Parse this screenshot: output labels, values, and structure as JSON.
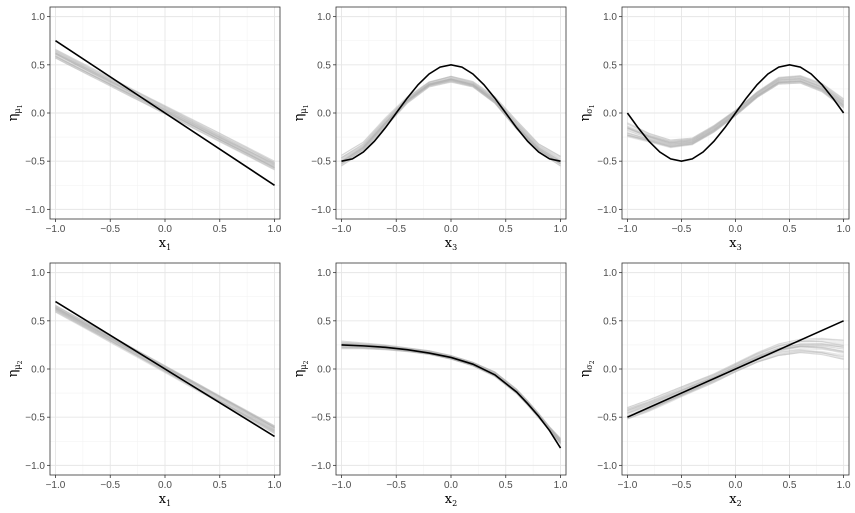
{
  "chart_data": [
    {
      "type": "line",
      "xlabel": {
        "base": "x",
        "sub": "1"
      },
      "ylabel": {
        "base": "η",
        "sub": "μ",
        "subsub": "1"
      },
      "xlim": [
        -1.05,
        1.05
      ],
      "ylim": [
        -1.1,
        1.1
      ],
      "xticks": [
        -1.0,
        -0.5,
        0.0,
        0.5,
        1.0
      ],
      "xtick_labels": [
        "−1.0",
        "−0.5",
        "0.0",
        "0.5",
        "1.0"
      ],
      "yticks": [
        -1.0,
        -0.5,
        0.0,
        0.5,
        1.0
      ],
      "ytick_labels": [
        "−1.0",
        "−0.5",
        "0.0",
        "0.5",
        "1.0"
      ],
      "grid": true,
      "series": [
        {
          "role": "true",
          "color": "#000000",
          "x": [
            -1.0,
            1.0
          ],
          "y": [
            0.75,
            -0.75
          ]
        },
        {
          "role": "estimates",
          "color": "#b3b3b3",
          "x": [
            -1.0,
            1.0
          ],
          "y_min": [
            0.57,
            -0.59
          ],
          "y_max": [
            0.66,
            -0.5
          ]
        }
      ]
    },
    {
      "type": "line",
      "xlabel": {
        "base": "x",
        "sub": "3"
      },
      "ylabel": {
        "base": "η",
        "sub": "μ",
        "subsub": "1"
      },
      "xlim": [
        -1.05,
        1.05
      ],
      "ylim": [
        -1.1,
        1.1
      ],
      "xticks": [
        -1.0,
        -0.5,
        0.0,
        0.5,
        1.0
      ],
      "xtick_labels": [
        "−1.0",
        "−0.5",
        "0.0",
        "0.5",
        "1.0"
      ],
      "yticks": [
        -1.0,
        -0.5,
        0.0,
        0.5,
        1.0
      ],
      "ytick_labels": [
        "−1.0",
        "−0.5",
        "0.0",
        "0.5",
        "1.0"
      ],
      "grid": true,
      "series": [
        {
          "role": "true",
          "color": "#000000",
          "x": [
            -1.0,
            -0.9,
            -0.8,
            -0.7,
            -0.6,
            -0.5,
            -0.4,
            -0.3,
            -0.2,
            -0.1,
            0.0,
            0.1,
            0.2,
            0.3,
            0.4,
            0.5,
            0.6,
            0.7,
            0.8,
            0.9,
            1.0
          ],
          "y": [
            -0.5,
            -0.476,
            -0.405,
            -0.294,
            -0.155,
            0.0,
            0.155,
            0.294,
            0.405,
            0.476,
            0.5,
            0.476,
            0.405,
            0.294,
            0.155,
            0.0,
            -0.155,
            -0.294,
            -0.405,
            -0.476,
            -0.5
          ]
        },
        {
          "role": "estimates",
          "color": "#b3b3b3",
          "x": [
            -1.0,
            -0.8,
            -0.6,
            -0.4,
            -0.2,
            0.0,
            0.2,
            0.4,
            0.6,
            0.8,
            1.0
          ],
          "y_min": [
            -0.55,
            -0.4,
            -0.15,
            0.1,
            0.27,
            0.32,
            0.27,
            0.1,
            -0.17,
            -0.4,
            -0.55
          ],
          "y_max": [
            -0.44,
            -0.3,
            -0.05,
            0.17,
            0.33,
            0.39,
            0.33,
            0.17,
            -0.08,
            -0.32,
            -0.45
          ]
        }
      ]
    },
    {
      "type": "line",
      "xlabel": {
        "base": "x",
        "sub": "3"
      },
      "ylabel": {
        "base": "η",
        "sub": "σ",
        "subsub": "1"
      },
      "xlim": [
        -1.05,
        1.05
      ],
      "ylim": [
        -1.1,
        1.1
      ],
      "xticks": [
        -1.0,
        -0.5,
        0.0,
        0.5,
        1.0
      ],
      "xtick_labels": [
        "−1.0",
        "−0.5",
        "0.0",
        "0.5",
        "1.0"
      ],
      "yticks": [
        -1.0,
        -0.5,
        0.0,
        0.5,
        1.0
      ],
      "ytick_labels": [
        "−1.0",
        "−0.5",
        "0.0",
        "0.5",
        "1.0"
      ],
      "grid": true,
      "series": [
        {
          "role": "true",
          "color": "#000000",
          "x": [
            -1.0,
            -0.9,
            -0.8,
            -0.7,
            -0.6,
            -0.5,
            -0.4,
            -0.3,
            -0.2,
            -0.1,
            0.0,
            0.1,
            0.2,
            0.3,
            0.4,
            0.5,
            0.6,
            0.7,
            0.8,
            0.9,
            1.0
          ],
          "y": [
            0.0,
            -0.155,
            -0.294,
            -0.405,
            -0.476,
            -0.5,
            -0.476,
            -0.405,
            -0.294,
            -0.155,
            0.0,
            0.155,
            0.294,
            0.405,
            0.476,
            0.5,
            0.476,
            0.405,
            0.294,
            0.155,
            0.0
          ]
        },
        {
          "role": "estimates",
          "color": "#b3b3b3",
          "x": [
            -1.0,
            -0.8,
            -0.6,
            -0.4,
            -0.2,
            0.0,
            0.2,
            0.4,
            0.6,
            0.8,
            1.0
          ],
          "y_min": [
            -0.25,
            -0.3,
            -0.36,
            -0.33,
            -0.2,
            -0.03,
            0.16,
            0.3,
            0.31,
            0.22,
            0.05
          ],
          "y_max": [
            -0.1,
            -0.21,
            -0.28,
            -0.26,
            -0.13,
            0.03,
            0.22,
            0.37,
            0.39,
            0.31,
            0.15
          ]
        }
      ]
    },
    {
      "type": "line",
      "xlabel": {
        "base": "x",
        "sub": "1"
      },
      "ylabel": {
        "base": "η",
        "sub": "μ",
        "subsub": "2"
      },
      "xlim": [
        -1.05,
        1.05
      ],
      "ylim": [
        -1.1,
        1.1
      ],
      "xticks": [
        -1.0,
        -0.5,
        0.0,
        0.5,
        1.0
      ],
      "xtick_labels": [
        "−1.0",
        "−0.5",
        "0.0",
        "0.5",
        "1.0"
      ],
      "yticks": [
        -1.0,
        -0.5,
        0.0,
        0.5,
        1.0
      ],
      "ytick_labels": [
        "−1.0",
        "−0.5",
        "0.0",
        "0.5",
        "1.0"
      ],
      "grid": true,
      "series": [
        {
          "role": "true",
          "color": "#000000",
          "x": [
            -1.0,
            1.0
          ],
          "y": [
            0.7,
            -0.7
          ]
        },
        {
          "role": "estimates",
          "color": "#b3b3b3",
          "x": [
            -1.0,
            1.0
          ],
          "y_min": [
            0.59,
            -0.67
          ],
          "y_max": [
            0.66,
            -0.59
          ]
        }
      ]
    },
    {
      "type": "line",
      "xlabel": {
        "base": "x",
        "sub": "2"
      },
      "ylabel": {
        "base": "η",
        "sub": "μ",
        "subsub": "2"
      },
      "xlim": [
        -1.05,
        1.05
      ],
      "ylim": [
        -1.1,
        1.1
      ],
      "xticks": [
        -1.0,
        -0.5,
        0.0,
        0.5,
        1.0
      ],
      "xtick_labels": [
        "−1.0",
        "−0.5",
        "0.0",
        "0.5",
        "1.0"
      ],
      "yticks": [
        -1.0,
        -0.5,
        0.0,
        0.5,
        1.0
      ],
      "ytick_labels": [
        "−1.0",
        "−0.5",
        "0.0",
        "0.5",
        "1.0"
      ],
      "grid": true,
      "series": [
        {
          "role": "true",
          "color": "#000000",
          "x": [
            -1.0,
            -0.8,
            -0.6,
            -0.4,
            -0.2,
            0.0,
            0.2,
            0.4,
            0.6,
            0.7,
            0.8,
            0.9,
            1.0
          ],
          "y": [
            0.25,
            0.24,
            0.225,
            0.2,
            0.165,
            0.12,
            0.05,
            -0.06,
            -0.24,
            -0.36,
            -0.49,
            -0.64,
            -0.82
          ]
        },
        {
          "role": "estimates",
          "color": "#b3b3b3",
          "x": [
            -1.0,
            -0.8,
            -0.6,
            -0.4,
            -0.2,
            0.0,
            0.2,
            0.4,
            0.6,
            0.7,
            0.8,
            0.9,
            1.0
          ],
          "y_min": [
            0.21,
            0.21,
            0.2,
            0.18,
            0.15,
            0.1,
            0.03,
            -0.08,
            -0.26,
            -0.38,
            -0.51,
            -0.64,
            -0.78
          ],
          "y_max": [
            0.29,
            0.27,
            0.25,
            0.22,
            0.19,
            0.14,
            0.07,
            -0.03,
            -0.21,
            -0.33,
            -0.46,
            -0.6,
            -0.72
          ]
        }
      ]
    },
    {
      "type": "line",
      "xlabel": {
        "base": "x",
        "sub": "2"
      },
      "ylabel": {
        "base": "η",
        "sub": "σ",
        "subsub": "2"
      },
      "xlim": [
        -1.05,
        1.05
      ],
      "ylim": [
        -1.1,
        1.1
      ],
      "xticks": [
        -1.0,
        -0.5,
        0.0,
        0.5,
        1.0
      ],
      "xtick_labels": [
        "−1.0",
        "−0.5",
        "0.0",
        "0.5",
        "1.0"
      ],
      "yticks": [
        -1.0,
        -0.5,
        0.0,
        0.5,
        1.0
      ],
      "ytick_labels": [
        "−1.0",
        "−0.5",
        "0.0",
        "0.5",
        "1.0"
      ],
      "grid": true,
      "series": [
        {
          "role": "true",
          "color": "#000000",
          "x": [
            -1.0,
            1.0
          ],
          "y": [
            -0.5,
            0.5
          ]
        },
        {
          "role": "estimates",
          "color": "#b3b3b3",
          "x": [
            -1.0,
            -0.8,
            -0.6,
            -0.4,
            -0.2,
            0.0,
            0.2,
            0.4,
            0.6,
            0.8,
            1.0
          ],
          "y_min": [
            -0.52,
            -0.44,
            -0.34,
            -0.24,
            -0.14,
            -0.03,
            0.07,
            0.14,
            0.17,
            0.15,
            0.1
          ],
          "y_max": [
            -0.4,
            -0.32,
            -0.23,
            -0.14,
            -0.05,
            0.06,
            0.17,
            0.26,
            0.31,
            0.32,
            0.3
          ]
        }
      ]
    }
  ]
}
